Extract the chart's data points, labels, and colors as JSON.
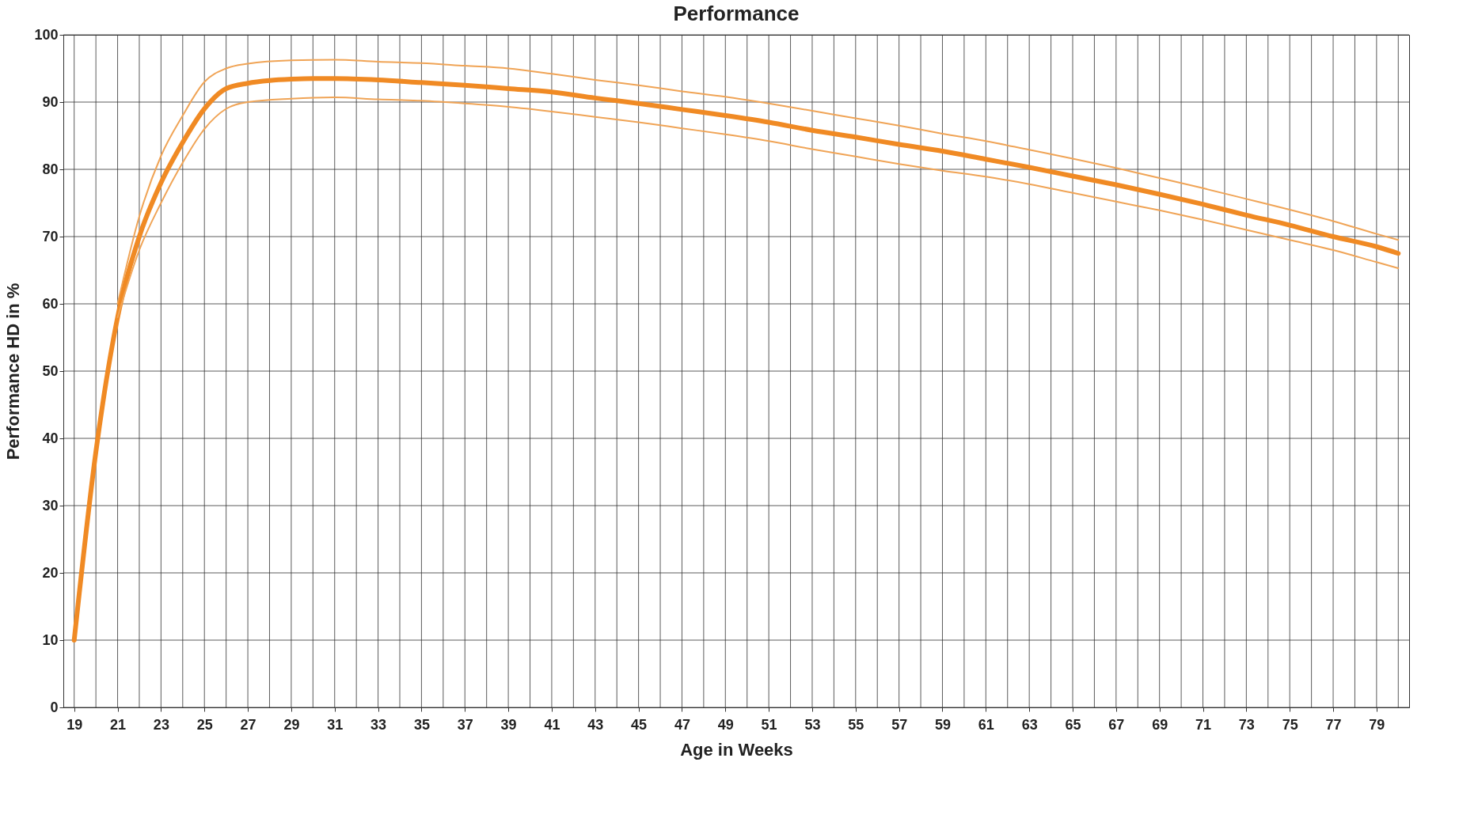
{
  "chart_data": {
    "type": "line",
    "title": "Performance",
    "xlabel": "Age in Weeks",
    "ylabel": "Performance HD in %",
    "xlim": [
      18.5,
      80.5
    ],
    "ylim": [
      0,
      100
    ],
    "yticks": [
      0,
      10,
      20,
      30,
      40,
      50,
      60,
      70,
      80,
      90,
      100
    ],
    "xticks": [
      19,
      {
        "value": 20,
        "label": null
      },
      21,
      {
        "value": 22,
        "label": null
      },
      23,
      {
        "value": 24,
        "label": null
      },
      25,
      {
        "value": 26,
        "label": null
      },
      27,
      {
        "value": 28,
        "label": null
      },
      29,
      {
        "value": 30,
        "label": null
      },
      31,
      {
        "value": 32,
        "label": null
      },
      33,
      {
        "value": 34,
        "label": null
      },
      35,
      {
        "value": 36,
        "label": null
      },
      37,
      {
        "value": 38,
        "label": null
      },
      39,
      {
        "value": 40,
        "label": null
      },
      41,
      {
        "value": 42,
        "label": null
      },
      43,
      {
        "value": 44,
        "label": null
      },
      45,
      {
        "value": 46,
        "label": null
      },
      47,
      {
        "value": 48,
        "label": null
      },
      49,
      {
        "value": 50,
        "label": null
      },
      51,
      {
        "value": 52,
        "label": null
      },
      53,
      {
        "value": 54,
        "label": null
      },
      55,
      {
        "value": 56,
        "label": null
      },
      57,
      {
        "value": 58,
        "label": null
      },
      59,
      {
        "value": 60,
        "label": null
      },
      61,
      {
        "value": 62,
        "label": null
      },
      63,
      {
        "value": 64,
        "label": null
      },
      65,
      {
        "value": 66,
        "label": null
      },
      67,
      {
        "value": 68,
        "label": null
      },
      69,
      {
        "value": 70,
        "label": null
      },
      71,
      {
        "value": 72,
        "label": null
      },
      73,
      {
        "value": 74,
        "label": null
      },
      75,
      {
        "value": 76,
        "label": null
      },
      77,
      {
        "value": 78,
        "label": null
      },
      79,
      {
        "value": 80,
        "label": null
      }
    ],
    "grid": true,
    "marker": "none",
    "line_style": "solid",
    "series": [
      {
        "color": "#f0a456",
        "x": [
          21,
          22,
          23,
          24,
          25,
          26,
          27,
          29,
          31,
          33,
          35,
          37,
          39,
          41,
          43,
          45,
          47,
          49,
          51,
          53,
          55,
          57,
          59,
          61,
          63,
          65,
          67,
          69,
          71,
          73,
          75,
          77,
          79,
          80
        ],
        "values": [
          60,
          73,
          82,
          88,
          93,
          95,
          95.7,
          96.2,
          96.3,
          96,
          95.8,
          95.4,
          95,
          94.2,
          93.3,
          92.5,
          91.6,
          90.8,
          89.8,
          88.7,
          87.6,
          86.5,
          85.3,
          84.2,
          82.9,
          81.6,
          80.2,
          78.7,
          77.2,
          75.6,
          74,
          72.3,
          70.4,
          69.5
        ]
      },
      {
        "color": "#f08a24",
        "x": [
          19,
          20,
          21,
          22,
          23,
          24,
          25,
          26,
          27,
          28,
          29,
          30,
          31,
          33,
          35,
          37,
          39,
          41,
          43,
          45,
          47,
          49,
          51,
          53,
          55,
          57,
          59,
          61,
          63,
          65,
          67,
          69,
          71,
          73,
          75,
          77,
          79,
          80
        ],
        "values": [
          10,
          38,
          58,
          70,
          78,
          84,
          89,
          92,
          92.8,
          93.2,
          93.4,
          93.5,
          93.5,
          93.3,
          92.9,
          92.5,
          92,
          91.5,
          90.6,
          89.8,
          88.9,
          88,
          87,
          85.8,
          84.8,
          83.7,
          82.7,
          81.5,
          80.3,
          79,
          77.7,
          76.3,
          74.8,
          73.2,
          71.7,
          70,
          68.5,
          67.5
        ]
      },
      {
        "color": "#f0a456",
        "x": [
          21,
          22,
          23,
          24,
          25,
          26,
          27,
          29,
          31,
          33,
          35,
          37,
          39,
          41,
          43,
          45,
          47,
          49,
          51,
          53,
          55,
          57,
          59,
          61,
          63,
          65,
          67,
          69,
          71,
          73,
          75,
          77,
          79,
          80
        ],
        "values": [
          58,
          68,
          75,
          81,
          86,
          89,
          90,
          90.5,
          90.7,
          90.4,
          90.2,
          89.8,
          89.3,
          88.6,
          87.8,
          87,
          86.1,
          85.2,
          84.2,
          83,
          81.9,
          80.8,
          79.8,
          78.9,
          77.8,
          76.5,
          75.2,
          73.9,
          72.5,
          71,
          69.5,
          68,
          66.2,
          65.3
        ]
      }
    ]
  }
}
